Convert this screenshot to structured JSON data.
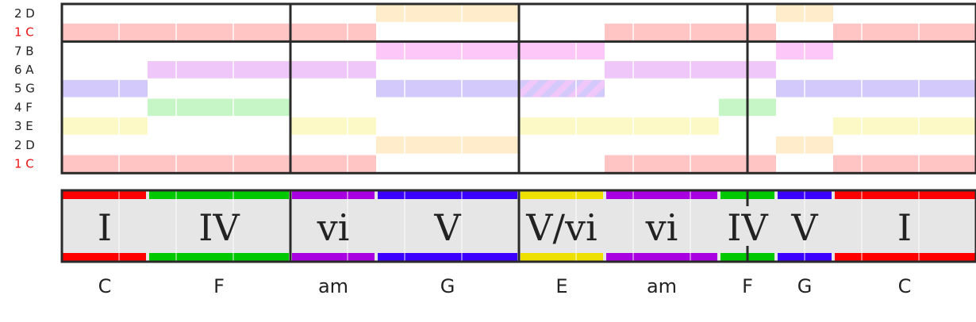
{
  "rows": [
    {
      "label": "2 D",
      "pitch": "D",
      "highlight": false
    },
    {
      "label": "1 C",
      "pitch": "C",
      "highlight": true
    },
    {
      "label": "7 B",
      "pitch": "B",
      "highlight": false
    },
    {
      "label": "6 A",
      "pitch": "A",
      "highlight": false
    },
    {
      "label": "5 G",
      "pitch": "G",
      "highlight": false
    },
    {
      "label": "4 F",
      "pitch": "F",
      "highlight": false
    },
    {
      "label": "3 E",
      "pitch": "E",
      "highlight": false
    },
    {
      "label": "2 D",
      "pitch": "D",
      "highlight": false
    },
    {
      "label": "1 C",
      "pitch": "C",
      "highlight": true
    }
  ],
  "note_colors": {
    "C": "#ffc4c4",
    "D": "#feeccb",
    "E": "#fcf9c6",
    "F": "#c6f5c6",
    "G": "#d4c9fb",
    "A": "#efc7f8",
    "B": "#fdc7f7"
  },
  "highlight_color": "#ee1111",
  "measures": 4,
  "beats_per_measure": 4,
  "chords": [
    {
      "roman": "I",
      "name": "C",
      "start": 0,
      "end": 3,
      "color": "#ff0000",
      "notes": [
        "C",
        "E",
        "G"
      ]
    },
    {
      "roman": "IV",
      "name": "F",
      "start": 3,
      "end": 8,
      "color": "#00c800",
      "notes": [
        "F",
        "A",
        "C"
      ]
    },
    {
      "roman": "vi",
      "name": "am",
      "start": 8,
      "end": 11,
      "color": "#a800e0",
      "notes": [
        "A",
        "C",
        "E"
      ]
    },
    {
      "roman": "V",
      "name": "G",
      "start": 11,
      "end": 16,
      "color": "#3c00ff",
      "notes": [
        "G",
        "B",
        "D"
      ]
    },
    {
      "roman": "V/vi",
      "name": "E",
      "start": 16,
      "end": 19,
      "color": "#eee000",
      "notes": [
        "E",
        "G#",
        "B"
      ]
    },
    {
      "roman": "vi",
      "name": "am",
      "start": 19,
      "end": 23,
      "color": "#a800e0",
      "notes": [
        "A",
        "C",
        "E"
      ]
    },
    {
      "roman": "IV",
      "name": "F",
      "start": 23,
      "end": 25,
      "color": "#00c800",
      "notes": [
        "F",
        "A",
        "C"
      ]
    },
    {
      "roman": "V",
      "name": "G",
      "start": 25,
      "end": 27,
      "color": "#3c00ff",
      "notes": [
        "G",
        "B",
        "D"
      ]
    },
    {
      "roman": "I",
      "name": "C",
      "start": 27,
      "end": 32,
      "color": "#ff0000",
      "notes": [
        "C",
        "E",
        "G"
      ]
    }
  ]
}
